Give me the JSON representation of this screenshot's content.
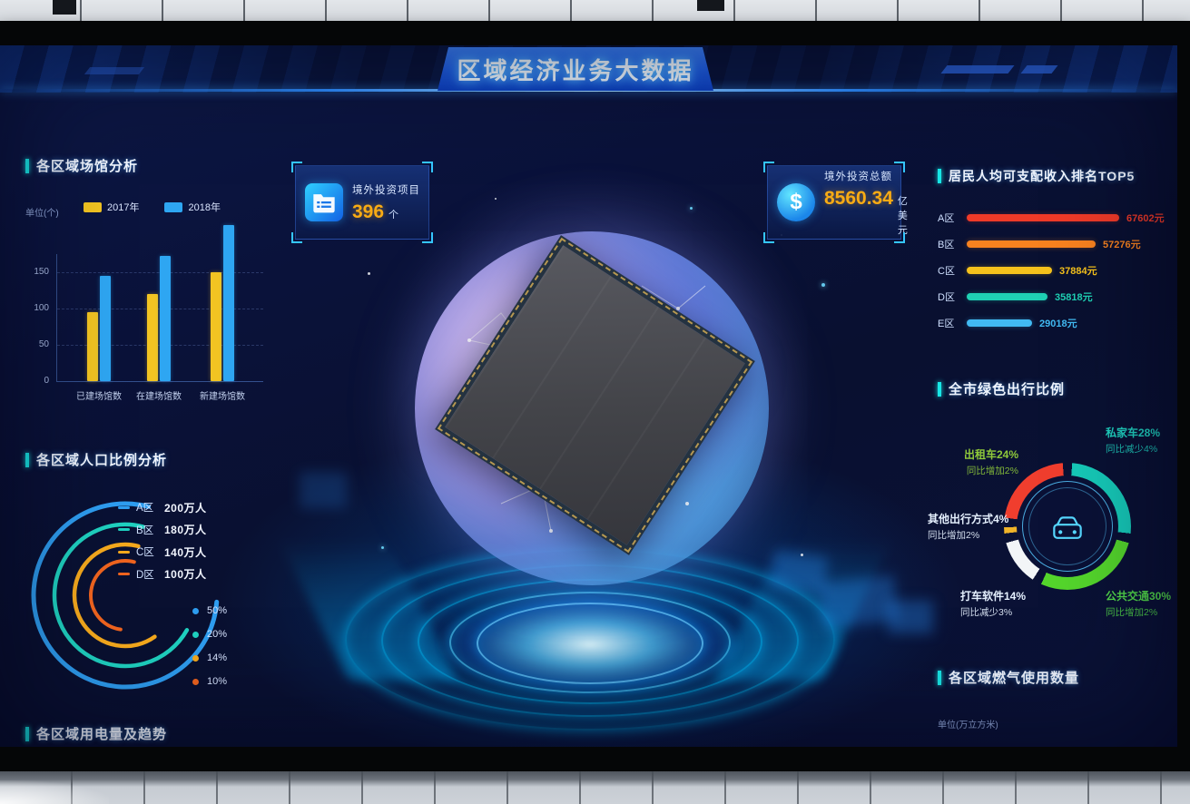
{
  "header": {
    "title": "区域经济业务大数据"
  },
  "stat_cards": [
    {
      "icon": "folder-icon",
      "label": "境外投资项目",
      "value": "396",
      "unit": "个"
    },
    {
      "icon": "dollar-coin-icon",
      "glyph": "$",
      "label": "境外投资总额",
      "value": "8560.34",
      "unit": "亿美元"
    }
  ],
  "sections": {
    "venue": {
      "title": "各区域场馆分析",
      "unit_label": "单位(个)"
    },
    "population": {
      "title": "各区域人口比例分析"
    },
    "electricity": {
      "title": "各区域用电量及趋势"
    },
    "income": {
      "title": "居民人均可支配收入排名TOP5"
    },
    "travel": {
      "title": "全市绿色出行比例"
    },
    "gas": {
      "title": "各区域燃气使用数量",
      "unit_label": "单位(万立方米)"
    }
  },
  "chart_data": [
    {
      "type": "bar",
      "title": "各区域场馆分析",
      "unit": "个",
      "categories": [
        "已建场馆数",
        "在建场馆数",
        "新建场馆数"
      ],
      "series": [
        {
          "name": "2017年",
          "color": "#f2c422",
          "values": [
            95,
            120,
            150
          ]
        },
        {
          "name": "2018年",
          "color": "#2ea6f2",
          "values": [
            145,
            172,
            215
          ]
        }
      ],
      "ylim": [
        0,
        220
      ],
      "yticks": [
        "150",
        "100",
        "50",
        "0"
      ],
      "grid": true,
      "legend_position": "top"
    },
    {
      "type": "bar",
      "orientation": "horizontal",
      "title": "居民人均可支配收入排名TOP5",
      "unit": "元",
      "rows": [
        {
          "label": "A区",
          "value": 67602,
          "display": "67602元",
          "color": "#f03a28"
        },
        {
          "label": "B区",
          "value": 57276,
          "display": "57276元",
          "color": "#f8821f"
        },
        {
          "label": "C区",
          "value": 37884,
          "display": "37884元",
          "color": "#f6c21c"
        },
        {
          "label": "D区",
          "value": 35818,
          "display": "35818元",
          "color": "#1fd1b4"
        },
        {
          "label": "E区",
          "value": 29018,
          "display": "29018元",
          "color": "#41b9f2"
        }
      ]
    },
    {
      "type": "pie",
      "title": "全市绿色出行比例",
      "legend_position": "around",
      "slices": [
        {
          "label": "私家车",
          "value": 28,
          "line1": "私家车28%",
          "line2": "同比减少4%",
          "color": "#16c9b8",
          "label_color": "#1fd1c0"
        },
        {
          "label": "公共交通",
          "value": 30,
          "line1": "公共交通30%",
          "line2": "同比增加2%",
          "color": "#54d62c",
          "label_color": "#52d84a"
        },
        {
          "label": "打车软件",
          "value": 14,
          "line1": "打车软件14%",
          "line2": "同比减少3%",
          "color": "#f2f5f7",
          "label_color": "#e6f1ff"
        },
        {
          "label": "其他出行方式",
          "value": 4,
          "line1": "其他出行方式4%",
          "line2": "同比增加2%",
          "color": "#f0b429",
          "label_color": "#e6f1ff"
        },
        {
          "label": "出租车",
          "value": 24,
          "line1": "出租车24%",
          "line2": "同比增加2%",
          "color": "#f03e2e",
          "label_color": "#8fc93a"
        }
      ]
    },
    {
      "type": "pie",
      "variant": "concentric-arcs",
      "title": "各区域人口比例分析",
      "items": [
        {
          "label": "A区",
          "value": "200万人",
          "pct": "50%",
          "color": "#2e9df0"
        },
        {
          "label": "B区",
          "value": "180万人",
          "pct": "20%",
          "color": "#1fd1c0"
        },
        {
          "label": "C区",
          "value": "140万人",
          "pct": "14%",
          "color": "#f5a91d"
        },
        {
          "label": "D区",
          "value": "100万人",
          "pct": "10%",
          "color": "#f0641f"
        }
      ]
    }
  ]
}
